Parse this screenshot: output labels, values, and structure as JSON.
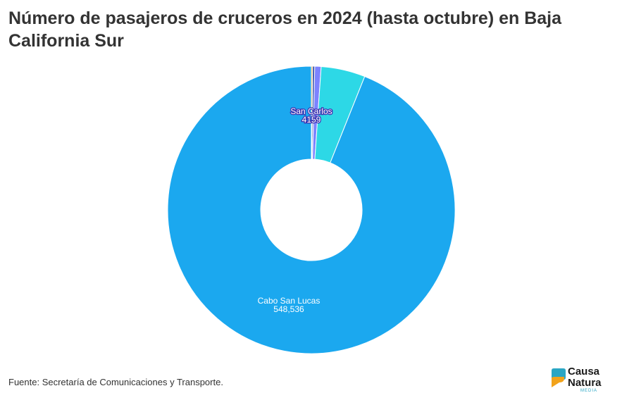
{
  "title": "Número de pasajeros de cruceros en 2024 (hasta octubre) en Baja California Sur",
  "source": "Fuente: Secretaría de Comunicaciones y Transporte.",
  "logo": {
    "line1": "Causa",
    "line2": "Natura",
    "sub": "MEDIA"
  },
  "chart_data": {
    "type": "pie",
    "donut": true,
    "slices": [
      {
        "name": "",
        "value": 900,
        "color": "#e8a23a"
      },
      {
        "name": "",
        "value": 1300,
        "color": "#1f3fa8"
      },
      {
        "name": "San Carlos",
        "value": 4159,
        "display": "4159",
        "color": "#7c83ff"
      },
      {
        "name": "",
        "value": 29000,
        "color": "#2dd8e6"
      },
      {
        "name": "Cabo San Lucas",
        "value": 548536,
        "display": "548,536",
        "color": "#1ba8ef"
      }
    ],
    "labels": [
      {
        "slice": 2,
        "name": "San Carlos",
        "value": "4159"
      },
      {
        "slice": 4,
        "name": "Cabo San Lucas",
        "value": "548,536"
      }
    ]
  }
}
